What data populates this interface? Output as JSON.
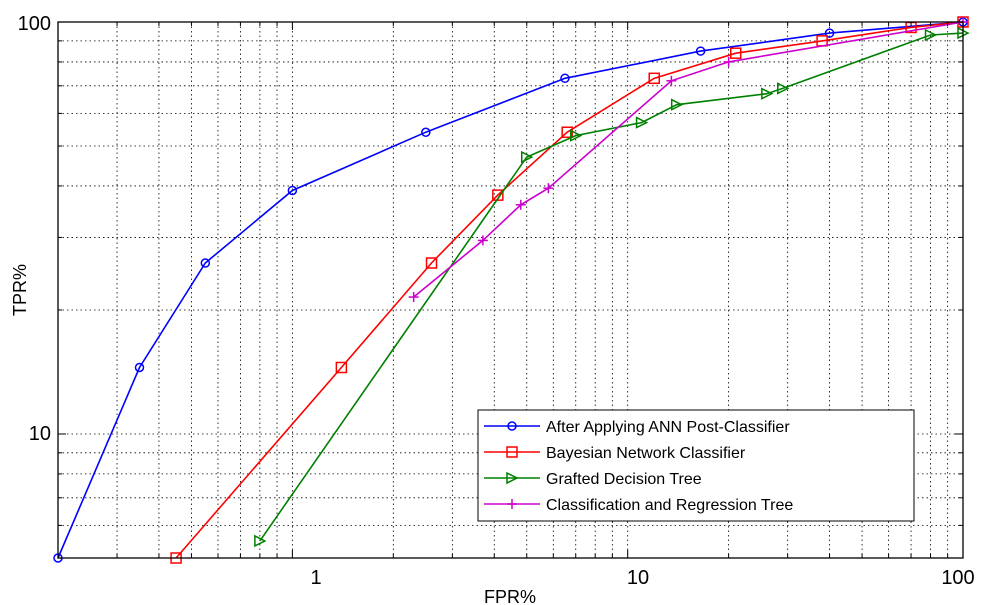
{
  "chart_data": {
    "type": "line",
    "title": "",
    "xlabel": "FPR%",
    "ylabel": "TPR%",
    "x_scale": "log",
    "y_scale": "log",
    "xlim": [
      0.2,
      100
    ],
    "ylim": [
      5,
      100
    ],
    "x_tick_labels": [
      "1",
      "10",
      "100"
    ],
    "y_tick_labels": [
      "10",
      "100"
    ],
    "grid": true,
    "legend_position": "bottom-right",
    "series": [
      {
        "name": "After Applying ANN Post-Classifier",
        "color": "#0000ff",
        "marker": "circle",
        "x": [
          0.2,
          0.35,
          0.55,
          1.0,
          2.5,
          6.5,
          16.5,
          40,
          100
        ],
        "y": [
          5,
          14.5,
          26,
          39,
          54,
          73,
          85,
          94,
          100
        ]
      },
      {
        "name": "Bayesian Network Classifier",
        "color": "#ff0000",
        "marker": "square",
        "x": [
          0.45,
          1.4,
          2.6,
          4.1,
          6.6,
          12,
          21,
          38,
          70,
          100
        ],
        "y": [
          5,
          14.5,
          26,
          38,
          54,
          73,
          84,
          90,
          97,
          100
        ]
      },
      {
        "name": "Grafted Decision Tree",
        "color": "#008000",
        "marker": "triangle-right",
        "x": [
          0.8,
          5,
          7,
          11,
          14,
          26,
          29,
          80,
          100
        ],
        "y": [
          5.5,
          47,
          53,
          57,
          63,
          67,
          69,
          93,
          94
        ]
      },
      {
        "name": "Classification and Regression Tree",
        "color": "#cc00cc",
        "marker": "plus",
        "x": [
          2.3,
          3.7,
          4.8,
          5.8,
          13.5,
          20,
          100
        ],
        "y": [
          21.5,
          29.5,
          36,
          39.5,
          72,
          80,
          100
        ]
      }
    ]
  }
}
